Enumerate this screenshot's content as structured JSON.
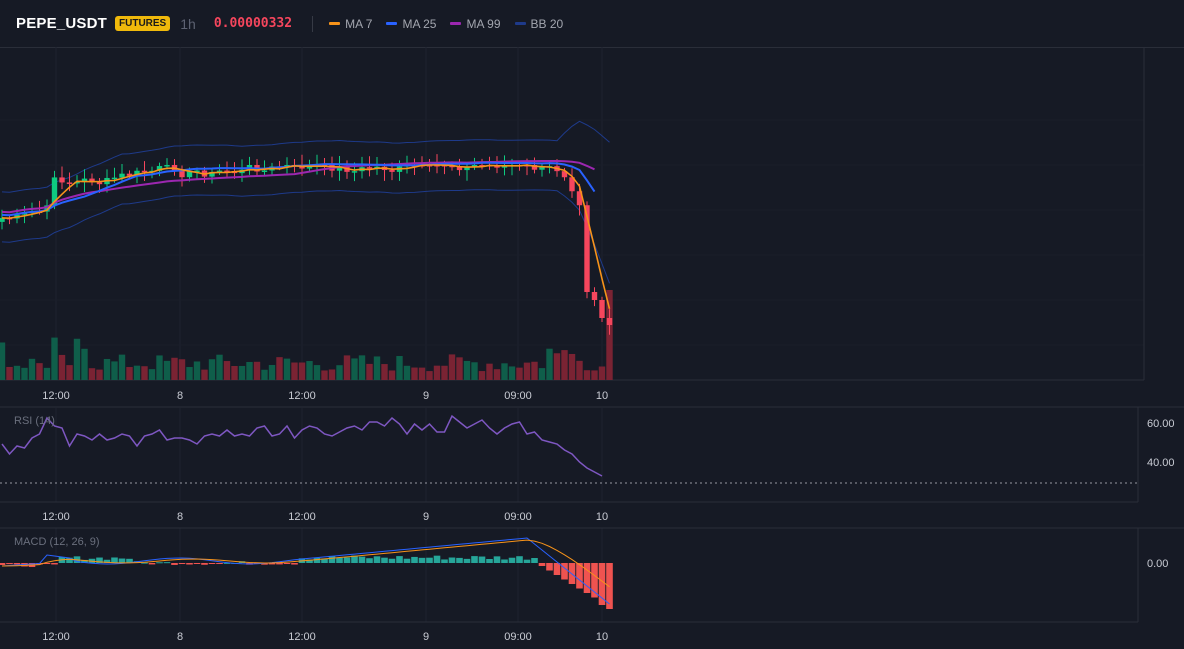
{
  "header": {
    "symbol": "PEPE_USDT",
    "badge": "FUTURES",
    "interval": "1h",
    "price": "0.00000332",
    "price_color": "#f6465d",
    "legend": [
      {
        "label": "MA 7",
        "color": "#f7931a"
      },
      {
        "label": "MA 25",
        "color": "#2962ff"
      },
      {
        "label": "MA 99",
        "color": "#9c27b0"
      },
      {
        "label": "BB 20",
        "color": "#1e3a8a"
      }
    ]
  },
  "colors": {
    "up": "#0ecb81",
    "down": "#f6465d",
    "vol_up": "#0f5e4a",
    "vol_down": "#7a2333",
    "rsi": "#7e57c2",
    "macd_line": "#2962ff",
    "signal_line": "#f7931a"
  },
  "time_axis": [
    "12:00",
    "8",
    "12:00",
    "9",
    "09:00",
    "10"
  ],
  "rsi": {
    "label": "RSI (14)",
    "ticks": [
      "60.00",
      "40.00"
    ],
    "values": [
      49,
      44,
      48,
      47,
      52,
      54,
      62,
      58,
      57,
      48,
      54,
      53,
      51,
      54,
      51,
      52,
      54,
      53,
      48,
      53,
      54,
      56,
      51,
      52,
      52,
      51,
      49,
      53,
      54,
      53,
      56,
      53,
      54,
      53,
      57,
      58,
      53,
      54,
      58,
      52,
      56,
      58,
      57,
      54,
      53,
      55,
      57,
      58,
      56,
      60,
      60,
      58,
      62,
      59,
      54,
      59,
      56,
      59,
      55,
      55,
      63,
      60,
      57,
      59,
      61,
      57,
      54,
      57,
      59,
      60,
      54,
      55,
      51,
      50,
      49,
      46,
      44,
      40,
      37,
      35,
      33
    ]
  },
  "macd": {
    "label": "MACD (12, 26, 9)",
    "ticks": [
      "0.00"
    ]
  }
}
